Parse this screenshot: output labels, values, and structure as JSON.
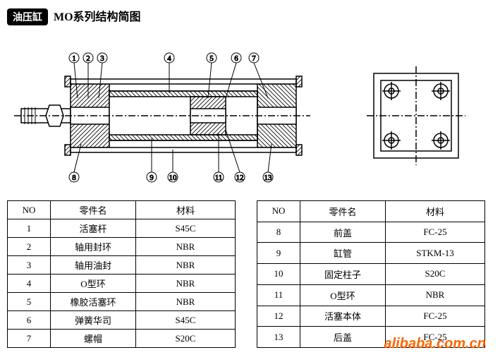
{
  "title_black": "油压缸",
  "title_rest": "MO系列结构简图",
  "callouts": [
    "1",
    "2",
    "3",
    "4",
    "5",
    "6",
    "7",
    "8",
    "9",
    "10",
    "11",
    "12",
    "13"
  ],
  "headers": {
    "no": "NO",
    "name": "零件名",
    "material": "材料"
  },
  "table_left": [
    {
      "no": "1",
      "name": "活塞杆",
      "material": "S45C"
    },
    {
      "no": "2",
      "name": "轴用封环",
      "material": "NBR"
    },
    {
      "no": "3",
      "name": "轴用油封",
      "material": "NBR"
    },
    {
      "no": "4",
      "name": "O型环",
      "material": "NBR"
    },
    {
      "no": "5",
      "name": "橡胶活塞环",
      "material": "NBR"
    },
    {
      "no": "6",
      "name": "弹簧华司",
      "material": "S45C"
    },
    {
      "no": "7",
      "name": "螺帽",
      "material": "S20C"
    }
  ],
  "table_right": [
    {
      "no": "8",
      "name": "前盖",
      "material": "FC-25"
    },
    {
      "no": "9",
      "name": "缸管",
      "material": "STKM-13"
    },
    {
      "no": "10",
      "name": "固定柱子",
      "material": "S20C"
    },
    {
      "no": "11",
      "name": "O型环",
      "material": "NBR"
    },
    {
      "no": "12",
      "name": "活塞本体",
      "material": "FC-25"
    },
    {
      "no": "13",
      "name": "后盖",
      "material": "FC-25"
    }
  ],
  "watermark": "alibaba.com.cn",
  "styling": {
    "stroke": "#000000",
    "stroke_width": 1.5,
    "hatch_spacing": 5,
    "circle_radius": 7,
    "font_size_callout": 11,
    "bg": "#ffffff"
  }
}
